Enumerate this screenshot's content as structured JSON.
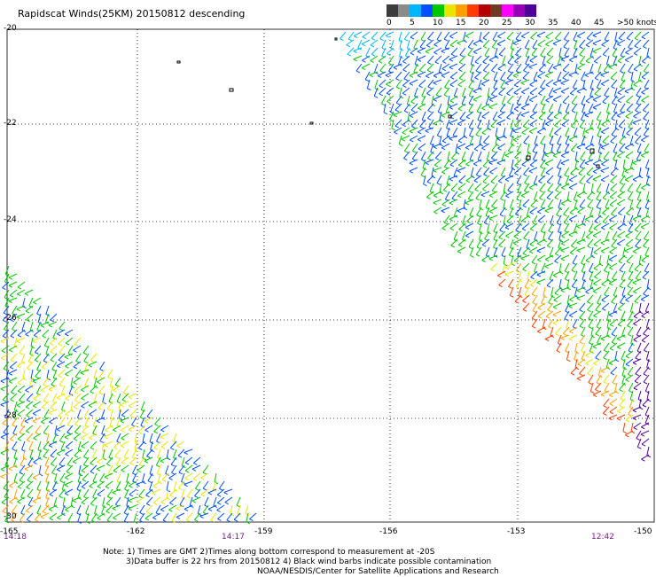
{
  "title": "Rapidscat Winds(25KM) 20150812 descending",
  "colorbar": {
    "labels": [
      "0",
      "5",
      "10",
      "15",
      "20",
      "25",
      "30",
      "35",
      "40",
      "45",
      ">50 knots"
    ],
    "colors": [
      "#3c3c3c",
      "#8a8a8a",
      "#00b4ff",
      "#0050ff",
      "#00c800",
      "#e6e600",
      "#ffa000",
      "#ff3c00",
      "#b40000",
      "#6e3c1e",
      "#ff00ff",
      "#9600b4",
      "#50009a"
    ]
  },
  "axes": {
    "y_labels": [
      "-20",
      "-22",
      "-24",
      "-26",
      "-28",
      "-30"
    ],
    "x_labels": [
      "-165",
      "-162",
      "-159",
      "-156",
      "-153",
      "-150"
    ]
  },
  "times": {
    "t1": "14:18",
    "t2": "14:17",
    "t3": "12:42"
  },
  "notes": {
    "line1": "Note: 1) Times are GMT 2)Times along bottom correspond to measurement at -20S",
    "line2": "3)Data buffer is 22 hrs from 20150812 4) Black wind barbs indicate possible contamination",
    "line3": "NOAA/NESDIS/Center for Satellite Applications and Research"
  }
}
